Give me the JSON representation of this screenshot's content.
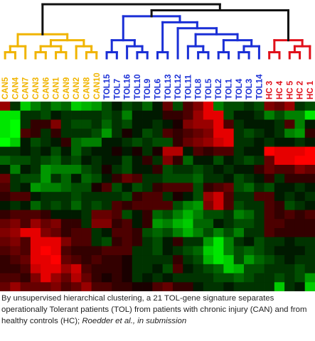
{
  "chart_data": {
    "type": "heatmap",
    "samples": [
      "CAN5",
      "CAN4",
      "CAN7",
      "CAN3",
      "CAN6",
      "CAN1",
      "CAN9",
      "CAN2",
      "CAN8",
      "CAN10",
      "TOL15",
      "TOL7",
      "TOL16",
      "TOL10",
      "TOL9",
      "TOL6",
      "TOL13",
      "TOL12",
      "TOL11",
      "TOL8",
      "TOL5",
      "TOL2",
      "TOL1",
      "TOL4",
      "TOL3",
      "TOL14",
      "HC 3",
      "HC 4",
      "HC 5",
      "HC 2",
      "HC 1"
    ],
    "groups": [
      {
        "name": "CAN",
        "color": "#f0b400"
      },
      {
        "name": "TOL",
        "color": "#1a2fd6"
      },
      {
        "name": "HC",
        "color": "#e0101a"
      }
    ],
    "sample_group": [
      "CAN",
      "CAN",
      "CAN",
      "CAN",
      "CAN",
      "CAN",
      "CAN",
      "CAN",
      "CAN",
      "CAN",
      "TOL",
      "TOL",
      "TOL",
      "TOL",
      "TOL",
      "TOL",
      "TOL",
      "TOL",
      "TOL",
      "TOL",
      "TOL",
      "TOL",
      "TOL",
      "TOL",
      "TOL",
      "TOL",
      "HC",
      "HC",
      "HC",
      "HC",
      "HC"
    ],
    "gene_count": 21,
    "color_scale": {
      "low": "#00ff00",
      "mid": "#000000",
      "high": "#ff0000",
      "min": -1,
      "max": 1
    },
    "values": [
      [
        0.6,
        -0.2,
        -0.8,
        -0.5,
        -0.3,
        -0.5,
        -0.4,
        -0.8,
        -0.7,
        -0.6,
        -0.3,
        -0.1,
        -0.3,
        -0.2,
        -0.4,
        -0.1,
        0.4,
        -0.3,
        0.3,
        0.5,
        0.9,
        -0.5,
        -0.3,
        -0.3,
        -0.2,
        -0.3,
        0.5,
        0.4,
        0.6,
        -0.2,
        -0.3
      ],
      [
        -0.9,
        -0.9,
        -0.2,
        -0.2,
        -0.3,
        -0.1,
        -0.2,
        -0.2,
        -0.2,
        -0.2,
        -0.3,
        -0.2,
        -0.5,
        -0.1,
        -0.1,
        -0.1,
        0.2,
        0.2,
        0.3,
        0.6,
        0.9,
        0.9,
        -0.3,
        -0.1,
        -0.1,
        -0.2,
        -0.5,
        -0.3,
        -0.5,
        -0.5,
        -0.9
      ],
      [
        -0.9,
        -1.0,
        -0.2,
        0.2,
        0.2,
        0.5,
        -0.2,
        -0.3,
        -0.3,
        -0.2,
        -0.4,
        -0.2,
        -0.3,
        -0.1,
        -0.1,
        -0.2,
        -0.1,
        0.1,
        0.5,
        0.6,
        0.6,
        0.9,
        0.3,
        -0.2,
        -0.1,
        -0.1,
        -0.1,
        -0.2,
        0.3,
        -0.5,
        -0.1
      ],
      [
        -0.9,
        -1.0,
        0.3,
        0.2,
        -0.2,
        0.2,
        -0.2,
        -0.2,
        -0.2,
        -0.3,
        -0.6,
        -0.2,
        0.1,
        -0.1,
        -0.3,
        -0.2,
        0.3,
        0.2,
        0.3,
        0.4,
        0.5,
        0.9,
        0.9,
        -0.2,
        -0.3,
        -0.2,
        -0.1,
        -0.2,
        -0.5,
        -0.6,
        0.2
      ],
      [
        -1.0,
        -0.8,
        -0.1,
        -0.3,
        -0.2,
        -0.1,
        0.2,
        -0.4,
        -0.5,
        -0.5,
        -0.1,
        -0.1,
        -0.2,
        -0.3,
        -0.2,
        -0.3,
        -0.3,
        0.2,
        0.4,
        0.5,
        0.6,
        0.8,
        0.9,
        -0.2,
        -0.2,
        -0.1,
        -0.2,
        -0.1,
        -0.1,
        -0.2,
        -0.1
      ],
      [
        -0.2,
        -0.2,
        -0.1,
        -0.2,
        -0.1,
        -0.3,
        -0.1,
        -0.4,
        -0.2,
        -0.1,
        -0.1,
        0.1,
        -0.1,
        0.1,
        -0.2,
        0.1,
        0.7,
        0.7,
        -0.1,
        0.3,
        0.2,
        0.3,
        0.3,
        -0.2,
        -0.1,
        -0.1,
        1.0,
        0.9,
        0.9,
        0.9,
        1.0
      ],
      [
        -0.4,
        -0.3,
        -0.3,
        -0.2,
        -0.3,
        -0.4,
        -0.2,
        -0.3,
        -0.1,
        -0.2,
        -0.1,
        -0.1,
        -0.3,
        -0.1,
        0.2,
        -0.2,
        0.5,
        0.2,
        -0.4,
        -0.1,
        -0.1,
        -0.3,
        -0.1,
        -0.2,
        -0.3,
        -0.2,
        0.4,
        0.9,
        0.9,
        1.0,
        1.0
      ],
      [
        -0.1,
        -0.5,
        -0.1,
        -0.2,
        -0.6,
        -0.5,
        -0.5,
        -0.5,
        -0.3,
        -0.2,
        0.1,
        -0.2,
        -0.3,
        -0.1,
        -0.1,
        0.2,
        -0.3,
        -0.2,
        -0.2,
        -0.3,
        -0.2,
        -0.1,
        -0.2,
        -0.1,
        -0.1,
        0.2,
        0.4,
        0.3,
        0.3,
        0.5,
        0.4
      ],
      [
        0.4,
        -0.2,
        -0.3,
        -0.3,
        -0.6,
        -0.2,
        -0.4,
        -0.1,
        -0.4,
        -0.3,
        -0.1,
        0.2,
        0.4,
        0.3,
        -0.2,
        -0.2,
        -0.3,
        -0.3,
        -0.3,
        -0.4,
        -0.2,
        -0.2,
        -0.1,
        -0.3,
        -0.2,
        -0.1,
        0.2,
        -0.2,
        0.2,
        0.2,
        0.2
      ],
      [
        0.3,
        -0.2,
        -0.1,
        -0.6,
        -0.5,
        -0.5,
        -0.4,
        -0.3,
        -0.3,
        0.1,
        0.3,
        -0.3,
        -0.1,
        -0.3,
        -0.2,
        0.2,
        0.3,
        0.3,
        0.3,
        -0.3,
        0.2,
        0.3,
        0.4,
        -0.3,
        -0.4,
        -0.2,
        -0.3,
        -0.1,
        -0.1,
        -0.2,
        -0.1
      ],
      [
        0.2,
        0.3,
        0.3,
        -0.1,
        -0.2,
        -0.2,
        -0.2,
        -0.3,
        -0.2,
        -0.2,
        -0.2,
        -0.2,
        -0.3,
        0.2,
        0.3,
        0.3,
        -0.2,
        0.1,
        -0.1,
        -0.3,
        0.6,
        0.8,
        0.3,
        -0.2,
        -0.2,
        0.3,
        0.3,
        -0.1,
        -0.2,
        -0.1,
        -0.2
      ],
      [
        -0.1,
        -0.2,
        -0.1,
        -0.4,
        -0.2,
        -0.3,
        -0.2,
        -0.4,
        -0.2,
        -0.3,
        -0.2,
        0.3,
        0.2,
        0.3,
        0.3,
        0.3,
        0.3,
        -0.3,
        -0.5,
        -0.6,
        0.5,
        0.8,
        0.3,
        -0.3,
        -0.2,
        -0.2,
        0.3,
        0.2,
        -0.3,
        -0.2,
        -0.1
      ],
      [
        0.2,
        0.3,
        0.3,
        0.3,
        0.2,
        -0.1,
        -0.1,
        -0.1,
        -0.2,
        0.4,
        0.4,
        0.3,
        -0.3,
        -0.1,
        0.2,
        -0.4,
        -0.3,
        -0.5,
        -0.7,
        -0.5,
        -0.3,
        -0.3,
        -0.2,
        -0.5,
        -0.4,
        -0.2,
        0.3,
        0.2,
        0.3,
        0.2,
        0.3
      ],
      [
        0.4,
        0.5,
        0.3,
        0.6,
        0.4,
        0.5,
        0.2,
        0.2,
        -0.2,
        0.5,
        0.5,
        0.2,
        0.3,
        -0.1,
        0.2,
        -0.6,
        -0.5,
        -0.7,
        -0.8,
        -0.4,
        -0.4,
        -0.1,
        -0.2,
        -0.3,
        -0.3,
        -0.2,
        0.3,
        0.3,
        0.2,
        0.2,
        0.2
      ],
      [
        0.5,
        0.6,
        0.9,
        0.9,
        0.5,
        0.4,
        0.2,
        0.3,
        0.3,
        -0.2,
        -0.1,
        0.3,
        0.3,
        0.2,
        -0.3,
        -0.4,
        -0.3,
        -0.5,
        -0.7,
        -0.5,
        -0.3,
        -0.5,
        -0.3,
        -0.5,
        -0.2,
        -0.2,
        0.3,
        0.2,
        0.2,
        0.2,
        0.2
      ],
      [
        0.4,
        0.5,
        0.3,
        0.9,
        0.9,
        0.9,
        0.5,
        0.3,
        0.3,
        -0.2,
        -0.3,
        0.2,
        0.3,
        0.2,
        -0.2,
        -0.3,
        -0.1,
        0.2,
        -0.2,
        -0.2,
        -0.6,
        -0.9,
        -0.5,
        -0.2,
        -0.1,
        -0.3,
        -0.2,
        -0.2,
        -0.1,
        -0.2,
        -0.2
      ],
      [
        0.3,
        0.4,
        0.3,
        0.9,
        1.0,
        0.9,
        0.3,
        0.2,
        0.2,
        0.2,
        0.3,
        0.3,
        0.3,
        -0.2,
        -0.2,
        -0.3,
        -0.1,
        -0.2,
        -0.3,
        -0.4,
        -0.8,
        -0.9,
        -0.5,
        -0.3,
        -0.4,
        -0.3,
        -0.2,
        -0.1,
        -0.1,
        -0.1,
        -0.2
      ],
      [
        0.2,
        0.3,
        0.4,
        0.9,
        0.9,
        1.0,
        0.4,
        0.3,
        0.2,
        0.3,
        0.2,
        0.2,
        0.1,
        -0.2,
        -0.2,
        -0.2,
        -0.2,
        0.2,
        -0.2,
        -0.3,
        -0.7,
        -0.9,
        -0.8,
        -0.3,
        -0.6,
        -0.4,
        -0.3,
        -0.2,
        -0.1,
        -0.2,
        -0.2
      ],
      [
        0.2,
        0.2,
        0.3,
        0.8,
        0.9,
        0.9,
        0.6,
        0.8,
        0.3,
        0.2,
        0.2,
        0.2,
        0.1,
        -0.2,
        -0.2,
        -0.1,
        -0.3,
        0.3,
        -0.1,
        -0.2,
        -0.3,
        -0.4,
        -0.8,
        -0.7,
        -0.3,
        -0.3,
        -0.2,
        -0.2,
        -0.2,
        -0.3,
        -0.2
      ],
      [
        0.3,
        0.3,
        0.2,
        0.5,
        0.9,
        0.6,
        0.4,
        0.7,
        0.4,
        0.2,
        0.1,
        0.2,
        0.1,
        -0.2,
        -0.1,
        -0.2,
        -0.1,
        -0.2,
        -0.2,
        -0.2,
        -0.2,
        -0.3,
        -0.3,
        -0.4,
        -0.3,
        -0.2,
        -0.2,
        -0.3,
        -0.2,
        -0.3,
        -0.6
      ],
      [
        0.4,
        0.6,
        0.4,
        0.4,
        0.4,
        0.5,
        0.3,
        0.4,
        0.6,
        0.3,
        0.3,
        0.2,
        0.2,
        0.1,
        0.1,
        0.3,
        0.4,
        0.2,
        0.2,
        -0.1,
        -0.2,
        -0.2,
        -0.1,
        -0.2,
        -0.2,
        -0.2,
        -0.2,
        -0.8,
        -0.2,
        -0.1,
        -0.8
      ]
    ]
  },
  "caption": {
    "text": "By unsupervised hierarchical clustering, a 21 TOL-gene signature separates operationally Tolerant patients (TOL)  from patients with chronic injury (CAN) and from healthy controls (HC); ",
    "citation": "Roedder et al., in submission"
  }
}
